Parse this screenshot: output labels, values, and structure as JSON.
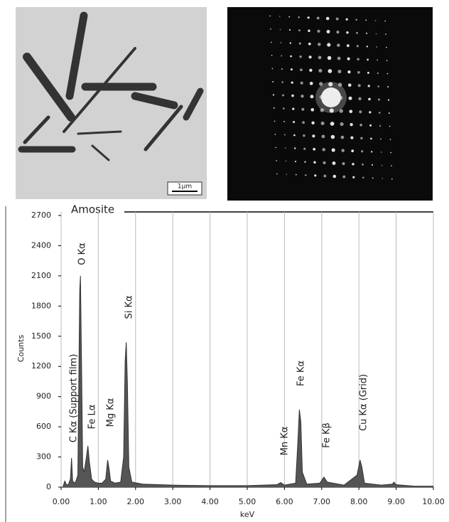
{
  "images": {
    "scale_bar": "1μm"
  },
  "chart_data": {
    "type": "area",
    "title": "Amosite",
    "x_label": "keV",
    "y_label": "Counts",
    "x": [
      0.05,
      0.1,
      0.15,
      0.2,
      0.25,
      0.28,
      0.31,
      0.38,
      0.45,
      0.5,
      0.52,
      0.55,
      0.58,
      0.62,
      0.68,
      0.72,
      0.76,
      0.82,
      0.9,
      1.0,
      1.1,
      1.2,
      1.25,
      1.29,
      1.33,
      1.45,
      1.6,
      1.68,
      1.72,
      1.75,
      1.78,
      1.82,
      1.9,
      2.2,
      3.0,
      4.0,
      5.0,
      5.8,
      5.9,
      6.0,
      6.3,
      6.36,
      6.4,
      6.44,
      6.48,
      6.6,
      6.95,
      7.06,
      7.15,
      7.6,
      7.95,
      8.03,
      8.08,
      8.15,
      8.6,
      8.9,
      8.94,
      9.0,
      9.5,
      10.0
    ],
    "values": [
      5,
      60,
      20,
      30,
      80,
      290,
      60,
      40,
      120,
      1950,
      2100,
      1200,
      200,
      150,
      300,
      410,
      250,
      80,
      50,
      40,
      40,
      80,
      270,
      180,
      60,
      40,
      50,
      300,
      1250,
      1440,
      1050,
      200,
      50,
      30,
      20,
      15,
      15,
      25,
      45,
      20,
      40,
      450,
      770,
      650,
      150,
      30,
      40,
      100,
      50,
      20,
      120,
      270,
      200,
      40,
      20,
      30,
      50,
      25,
      10,
      10
    ],
    "color": "#555555",
    "xlim": [
      0,
      10
    ],
    "xticks": [
      {
        "value": 0,
        "label": "0.00"
      },
      {
        "value": 1,
        "label": "1.00"
      },
      {
        "value": 2,
        "label": "2.00"
      },
      {
        "value": 3,
        "label": "3.00"
      },
      {
        "value": 4,
        "label": "4.00"
      },
      {
        "value": 5,
        "label": "5.00"
      },
      {
        "value": 6,
        "label": "6.00"
      },
      {
        "value": 7,
        "label": "7.00"
      },
      {
        "value": 8,
        "label": "8.00"
      },
      {
        "value": 9,
        "label": "9.00"
      },
      {
        "value": 10,
        "label": "10.00"
      }
    ],
    "ylim": [
      0,
      2700
    ],
    "yticks": [
      0,
      300,
      600,
      900,
      1200,
      1500,
      1800,
      2100,
      2400,
      2700
    ],
    "grid": "x",
    "annotations": [
      "C Kα (Support film)",
      "O Kα",
      "Fe Lα",
      "Mg Kα",
      "Si Kα",
      "Mn Kα",
      "Fe Kα",
      "Fe Kβ",
      "Cu Kα (Grid)"
    ]
  }
}
